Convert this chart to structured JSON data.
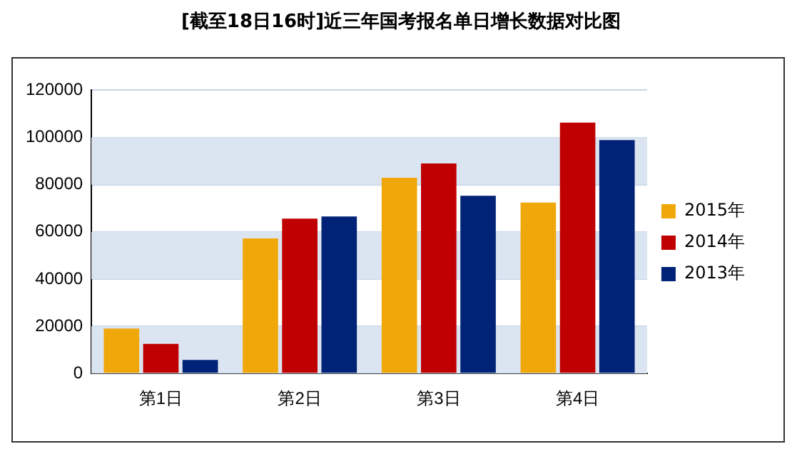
{
  "chart_data": {
    "type": "bar",
    "title": "[截至18日16时]近三年国考报名单日增长数据对比图",
    "categories": [
      "第1日",
      "第2日",
      "第3日",
      "第4日"
    ],
    "series": [
      {
        "name": "2015年",
        "color": "#f0a70a",
        "values": [
          19000,
          57200,
          82900,
          72400
        ]
      },
      {
        "name": "2014年",
        "color": "#c00000",
        "values": [
          12500,
          65600,
          89000,
          106300
        ]
      },
      {
        "name": "2013年",
        "color": "#002277",
        "values": [
          5700,
          66500,
          75300,
          98900
        ]
      }
    ],
    "ylim": [
      0,
      120000
    ],
    "yticks": [
      0,
      20000,
      40000,
      60000,
      80000,
      100000,
      120000
    ],
    "grid": "y",
    "legend": "right"
  }
}
